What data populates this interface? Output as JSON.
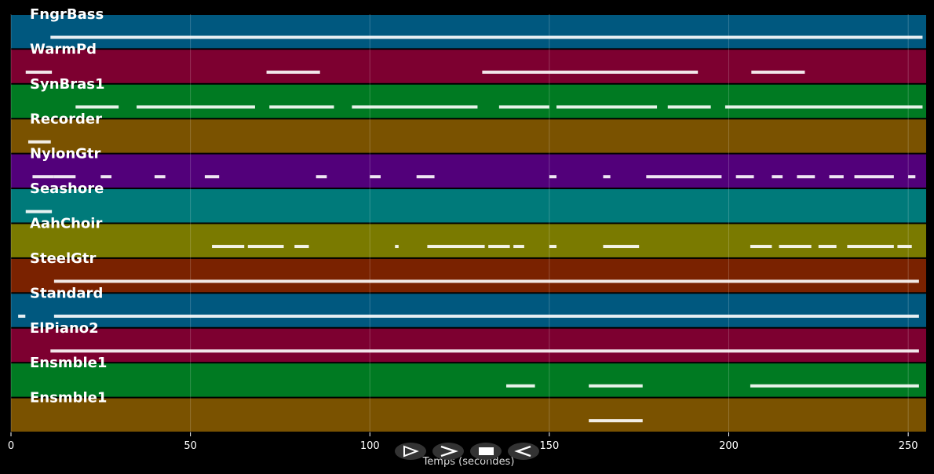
{
  "chart_data": {
    "type": "piano-roll",
    "xlabel": "Temps (secondes)",
    "xlim": [
      0,
      255
    ],
    "xticks": [
      0,
      50,
      100,
      150,
      200,
      250
    ],
    "grid": true,
    "tracks": [
      {
        "name": "FngrBass",
        "color": "#00587f",
        "notes": [
          [
            11,
            254
          ]
        ]
      },
      {
        "name": "WarmPd",
        "color": "#7d0030",
        "notes": [
          [
            4.1,
            11.4
          ],
          [
            71.2,
            86.1
          ],
          [
            131.3,
            191.4
          ],
          [
            206.3,
            221.2
          ]
        ]
      },
      {
        "name": "SynBras1",
        "color": "#007a22",
        "notes": [
          [
            18,
            30
          ],
          [
            35,
            68
          ],
          [
            72,
            90
          ],
          [
            95,
            130
          ],
          [
            136,
            150
          ],
          [
            152,
            180
          ],
          [
            183,
            195
          ],
          [
            199,
            254
          ]
        ]
      },
      {
        "name": "Recorder",
        "color": "#7a5200",
        "notes": [
          [
            4.8,
            11.1
          ]
        ]
      },
      {
        "name": "NylonGtr",
        "color": "#52007a",
        "notes": [
          [
            6,
            12
          ],
          [
            12,
            18
          ],
          [
            25,
            28
          ],
          [
            40,
            43
          ],
          [
            54,
            58
          ],
          [
            85,
            88
          ],
          [
            100,
            103
          ],
          [
            113,
            118
          ],
          [
            150,
            152
          ],
          [
            165,
            167
          ],
          [
            177,
            198
          ],
          [
            202,
            207
          ],
          [
            212,
            215
          ],
          [
            219,
            224
          ],
          [
            228,
            232
          ],
          [
            235,
            246
          ],
          [
            250,
            252
          ]
        ]
      },
      {
        "name": "Seashore",
        "color": "#007a7a",
        "notes": [
          [
            4.1,
            11.4
          ]
        ]
      },
      {
        "name": "AahChoir",
        "color": "#7a7a00",
        "notes": [
          [
            56,
            65
          ],
          [
            66,
            76
          ],
          [
            79,
            83
          ],
          [
            107,
            108
          ],
          [
            116,
            132
          ],
          [
            133,
            139
          ],
          [
            140,
            143
          ],
          [
            150,
            152
          ],
          [
            165,
            175
          ],
          [
            206,
            212
          ],
          [
            214,
            223
          ],
          [
            225,
            230
          ],
          [
            233,
            246
          ],
          [
            247,
            251
          ]
        ]
      },
      {
        "name": "SteelGtr",
        "color": "#7a2200",
        "notes": [
          [
            12,
            253
          ]
        ]
      },
      {
        "name": "Standard",
        "color": "#00587f",
        "notes": [
          [
            2,
            4
          ],
          [
            12,
            253
          ]
        ]
      },
      {
        "name": "ElPiano2",
        "color": "#7d0030",
        "notes": [
          [
            11,
            253
          ]
        ]
      },
      {
        "name": "Ensmble1",
        "color": "#007a22",
        "notes": [
          [
            138,
            146
          ],
          [
            161,
            176
          ],
          [
            206,
            253
          ]
        ]
      },
      {
        "name": "Ensmble1",
        "color": "#7a5200",
        "notes": [
          [
            161,
            176
          ]
        ]
      }
    ]
  }
}
